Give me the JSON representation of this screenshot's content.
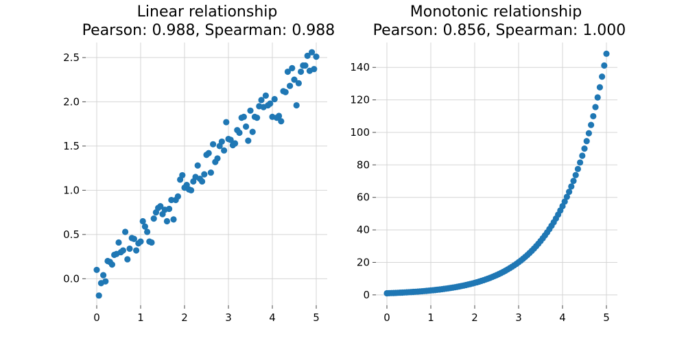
{
  "chart_data": [
    {
      "type": "scatter",
      "title": "Linear relationship",
      "subtitle": "Pearson: 0.988, Spearman: 0.988",
      "xlabel": "",
      "ylabel": "",
      "xlim": [
        -0.25,
        5.25
      ],
      "ylim": [
        -0.3,
        2.67
      ],
      "xticks": [
        0,
        1,
        2,
        3,
        4,
        5
      ],
      "xtick_labels": [
        "0",
        "1",
        "2",
        "3",
        "4",
        "5"
      ],
      "yticks": [
        0.0,
        0.5,
        1.0,
        1.5,
        2.0,
        2.5
      ],
      "ytick_labels": [
        "0.0",
        "0.5",
        "1.0",
        "1.5",
        "2.0",
        "2.5"
      ],
      "grid": true,
      "color": "#1f77b4",
      "series": [
        {
          "x": [
            0,
            0.05,
            0.1,
            0.15,
            0.2,
            0.25,
            0.3,
            0.35,
            0.4,
            0.45,
            0.5,
            0.55,
            0.6,
            0.65,
            0.7,
            0.75,
            0.8,
            0.85,
            0.9,
            0.95,
            1,
            1.05,
            1.1,
            1.15,
            1.2,
            1.25,
            1.3,
            1.35,
            1.4,
            1.45,
            1.5,
            1.55,
            1.6,
            1.65,
            1.7,
            1.75,
            1.8,
            1.85,
            1.9,
            1.95,
            2,
            2.05,
            2.1,
            2.15,
            2.2,
            2.25,
            2.3,
            2.35,
            2.4,
            2.45,
            2.5,
            2.55,
            2.6,
            2.65,
            2.7,
            2.75,
            2.8,
            2.85,
            2.9,
            2.95,
            3,
            3.05,
            3.1,
            3.15,
            3.2,
            3.25,
            3.3,
            3.35,
            3.4,
            3.45,
            3.5,
            3.55,
            3.6,
            3.65,
            3.7,
            3.75,
            3.8,
            3.85,
            3.9,
            3.95,
            4,
            4.05,
            4.1,
            4.15,
            4.2,
            4.25,
            4.3,
            4.35,
            4.4,
            4.45,
            4.5,
            4.55,
            4.6,
            4.65,
            4.7,
            4.75,
            4.8,
            4.85,
            4.9,
            4.95,
            5
          ],
          "y": [
            0.1,
            -0.19,
            -0.05,
            0.04,
            -0.03,
            0.2,
            0.19,
            0.16,
            0.27,
            0.28,
            0.41,
            0.3,
            0.32,
            0.53,
            0.22,
            0.34,
            0.46,
            0.45,
            0.32,
            0.4,
            0.42,
            0.65,
            0.59,
            0.53,
            0.42,
            0.41,
            0.68,
            0.75,
            0.8,
            0.82,
            0.73,
            0.78,
            0.65,
            0.79,
            0.89,
            0.67,
            0.89,
            0.93,
            1.12,
            1.17,
            1.03,
            1.06,
            1.01,
            1.0,
            1.1,
            1.15,
            1.28,
            1.13,
            1.1,
            1.18,
            1.4,
            1.42,
            1.2,
            1.52,
            1.32,
            1.36,
            1.5,
            1.55,
            1.45,
            1.77,
            1.58,
            1.57,
            1.51,
            1.53,
            1.68,
            1.65,
            1.82,
            1.83,
            1.72,
            1.56,
            1.9,
            1.66,
            1.83,
            1.82,
            1.95,
            2.02,
            1.94,
            2.07,
            1.96,
            1.98,
            1.83,
            2.03,
            1.82,
            1.84,
            1.78,
            2.12,
            2.11,
            2.34,
            2.18,
            2.38,
            2.25,
            1.96,
            2.21,
            2.34,
            2.41,
            2.41,
            2.52,
            2.35,
            2.56,
            2.37,
            2.51
          ]
        }
      ]
    },
    {
      "type": "scatter",
      "title": "Monotonic relationship",
      "subtitle": "Pearson: 0.856, Spearman: 1.000",
      "xlabel": "",
      "ylabel": "",
      "xlim": [
        -0.25,
        5.25
      ],
      "ylim": [
        -6.4,
        155.3
      ],
      "xticks": [
        0,
        1,
        2,
        3,
        4,
        5
      ],
      "xtick_labels": [
        "0",
        "1",
        "2",
        "3",
        "4",
        "5"
      ],
      "yticks": [
        0,
        20,
        40,
        60,
        80,
        100,
        120,
        140
      ],
      "ytick_labels": [
        "0",
        "20",
        "40",
        "60",
        "80",
        "100",
        "120",
        "140"
      ],
      "grid": true,
      "color": "#1f77b4",
      "series": [
        {
          "x": [
            0,
            0.05,
            0.1,
            0.15,
            0.2,
            0.25,
            0.3,
            0.35,
            0.4,
            0.45,
            0.5,
            0.55,
            0.6,
            0.65,
            0.7,
            0.75,
            0.8,
            0.85,
            0.9,
            0.95,
            1,
            1.05,
            1.1,
            1.15,
            1.2,
            1.25,
            1.3,
            1.35,
            1.4,
            1.45,
            1.5,
            1.55,
            1.6,
            1.65,
            1.7,
            1.75,
            1.8,
            1.85,
            1.9,
            1.95,
            2,
            2.05,
            2.1,
            2.15,
            2.2,
            2.25,
            2.3,
            2.35,
            2.4,
            2.45,
            2.5,
            2.55,
            2.6,
            2.65,
            2.7,
            2.75,
            2.8,
            2.85,
            2.9,
            2.95,
            3,
            3.05,
            3.1,
            3.15,
            3.2,
            3.25,
            3.3,
            3.35,
            3.4,
            3.45,
            3.5,
            3.55,
            3.6,
            3.65,
            3.7,
            3.75,
            3.8,
            3.85,
            3.9,
            3.95,
            4,
            4.05,
            4.1,
            4.15,
            4.2,
            4.25,
            4.3,
            4.35,
            4.4,
            4.45,
            4.5,
            4.55,
            4.6,
            4.65,
            4.7,
            4.75,
            4.8,
            4.85,
            4.9,
            4.95,
            5
          ],
          "y": [
            1.0,
            1.05,
            1.11,
            1.16,
            1.22,
            1.28,
            1.35,
            1.42,
            1.49,
            1.57,
            1.65,
            1.73,
            1.82,
            1.92,
            2.01,
            2.12,
            2.23,
            2.34,
            2.46,
            2.59,
            2.72,
            2.86,
            3.0,
            3.16,
            3.32,
            3.49,
            3.67,
            3.86,
            4.06,
            4.26,
            4.48,
            4.71,
            4.95,
            5.21,
            5.47,
            5.75,
            6.05,
            6.36,
            6.69,
            7.03,
            7.39,
            7.77,
            8.17,
            8.58,
            9.03,
            9.49,
            9.97,
            10.49,
            11.02,
            11.59,
            12.18,
            12.81,
            13.46,
            14.15,
            14.88,
            15.64,
            16.44,
            17.29,
            18.17,
            19.11,
            20.09,
            21.12,
            22.2,
            23.34,
            24.53,
            25.79,
            27.11,
            28.5,
            29.96,
            31.5,
            33.12,
            34.81,
            36.6,
            38.47,
            40.45,
            42.52,
            44.7,
            46.99,
            49.4,
            51.94,
            54.6,
            57.4,
            60.34,
            63.43,
            66.69,
            70.11,
            73.7,
            77.48,
            81.45,
            85.63,
            90.02,
            94.63,
            99.48,
            104.58,
            109.95,
            115.58,
            121.51,
            127.74,
            134.29,
            141.17,
            148.41
          ]
        }
      ]
    }
  ]
}
